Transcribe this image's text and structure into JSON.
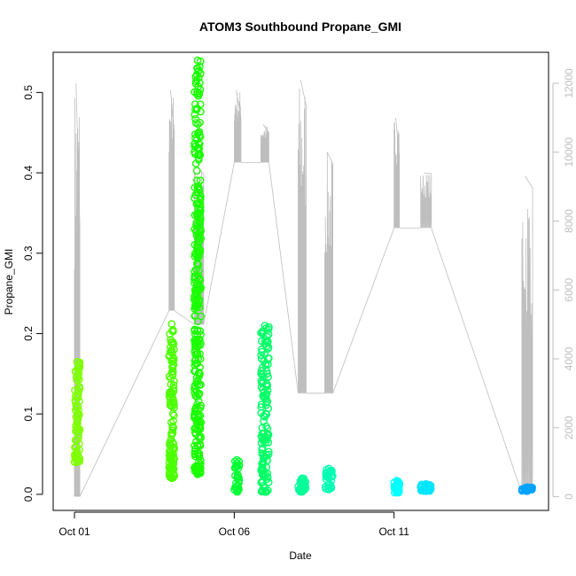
{
  "chart_data": {
    "type": "scatter",
    "title": "ATOM3 Southbound Propane_GMI",
    "xlabel": "Date",
    "ylabel": "Propane_GMI",
    "x_ticks": [
      "Oct 01",
      "Oct 06",
      "Oct 11"
    ],
    "y_ticks": [
      "0.0",
      "0.1",
      "0.2",
      "0.3",
      "0.4",
      "0.5"
    ],
    "y_right_ticks": [
      "0",
      "2000",
      "4000",
      "6000",
      "8000",
      "10000",
      "12000"
    ],
    "xlim": [
      "2013-09-30T08:00",
      "2013-10-15T20:00"
    ],
    "ylim": [
      -0.02,
      0.55
    ],
    "y_right_lim": [
      -400,
      12900
    ],
    "secondary_series_color": "#bebebe",
    "grid": false,
    "legend": "none",
    "point_clusters": [
      {
        "x_start": "2013-10-01T00:00",
        "x_end": "2013-10-01T04:00",
        "y_min": 0.04,
        "y_max": 0.165,
        "color": "#7fff00"
      },
      {
        "x_start": "2013-10-03T23:00",
        "x_end": "2013-10-04T03:00",
        "y_min": 0.02,
        "y_max": 0.212,
        "color": "#4cff00"
      },
      {
        "x_start": "2013-10-04T18:00",
        "x_end": "2013-10-04T23:00",
        "y_min": 0.025,
        "y_max": 0.54,
        "color": "#1aff00"
      },
      {
        "x_start": "2013-10-06T00:00",
        "x_end": "2013-10-06T04:00",
        "y_min": 0.003,
        "y_max": 0.043,
        "color": "#00ff33"
      },
      {
        "x_start": "2013-10-06T20:00",
        "x_end": "2013-10-07T02:00",
        "y_min": 0.003,
        "y_max": 0.21,
        "color": "#00ff66"
      },
      {
        "x_start": "2013-10-08T00:00",
        "x_end": "2013-10-08T06:00",
        "y_min": 0.003,
        "y_max": 0.02,
        "color": "#00ff99"
      },
      {
        "x_start": "2013-10-08T20:00",
        "x_end": "2013-10-09T02:00",
        "y_min": 0.006,
        "y_max": 0.032,
        "color": "#00ffb3"
      },
      {
        "x_start": "2013-10-11T00:00",
        "x_end": "2013-10-11T04:00",
        "y_min": 0.002,
        "y_max": 0.017,
        "color": "#00ffff"
      },
      {
        "x_start": "2013-10-11T20:00",
        "x_end": "2013-10-12T04:00",
        "y_min": 0.004,
        "y_max": 0.013,
        "color": "#00e5ff"
      },
      {
        "x_start": "2013-10-15T00:00",
        "x_end": "2013-10-15T08:00",
        "y_min": 0.004,
        "y_max": 0.009,
        "color": "#00a3ff"
      }
    ],
    "secondary_series": [
      {
        "x_start": "2013-10-01T00:00",
        "x_end": "2013-10-01T04:00",
        "peak": 12000,
        "low": 0
      },
      {
        "x_start": "2013-10-03T23:00",
        "x_end": "2013-10-04T03:00",
        "peak": 11800,
        "low": 5400
      },
      {
        "x_start": "2013-10-04T18:00",
        "x_end": "2013-10-05T01:00",
        "peak": 9600,
        "low": 5000
      },
      {
        "x_start": "2013-10-06T00:00",
        "x_end": "2013-10-06T05:00",
        "peak": 11800,
        "low": 9700
      },
      {
        "x_start": "2013-10-06T20:00",
        "x_end": "2013-10-07T02:00",
        "peak": 10800,
        "low": 9700
      },
      {
        "x_start": "2013-10-08T00:00",
        "x_end": "2013-10-08T06:00",
        "peak": 12100,
        "low": 3000
      },
      {
        "x_start": "2013-10-08T20:00",
        "x_end": "2013-10-09T02:00",
        "peak": 10000,
        "low": 3000
      },
      {
        "x_start": "2013-10-11T00:00",
        "x_end": "2013-10-11T04:00",
        "peak": 11000,
        "low": 7800
      },
      {
        "x_start": "2013-10-11T20:00",
        "x_end": "2013-10-12T04:00",
        "peak": 9400,
        "low": 7800
      },
      {
        "x_start": "2013-10-15T00:00",
        "x_end": "2013-10-15T08:00",
        "peak": 9300,
        "low": 100
      }
    ]
  }
}
